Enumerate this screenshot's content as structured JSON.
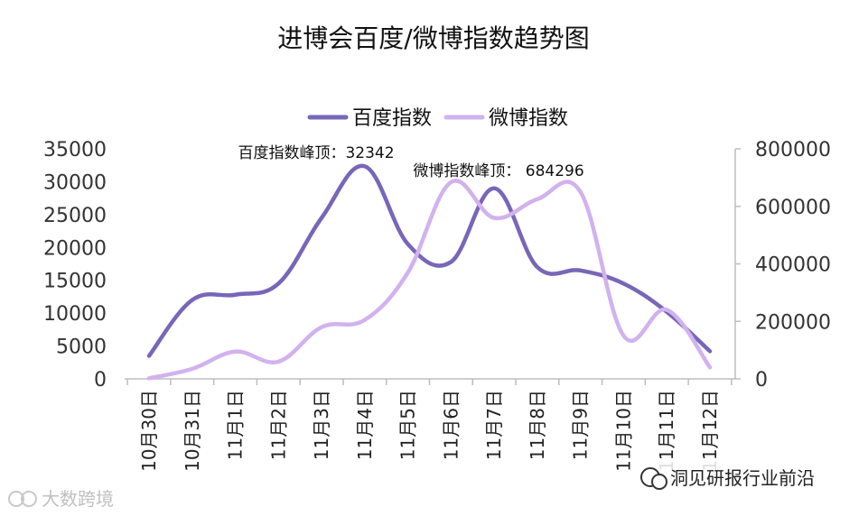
{
  "chart_data": {
    "type": "line",
    "title": "进博会百度/微博指数趋势图",
    "categories": [
      "10月30日",
      "10月31日",
      "11月1日",
      "11月2日",
      "11月3日",
      "11月4日",
      "11月5日",
      "11月6日",
      "11月7日",
      "11月8日",
      "11月9日",
      "11月10日",
      "11月11日",
      "11月12日"
    ],
    "series": [
      {
        "name": "百度指数",
        "axis": "left",
        "color": "#7866b8",
        "values": [
          3500,
          12000,
          12800,
          14500,
          24500,
          32342,
          20500,
          17800,
          29000,
          17000,
          16500,
          14500,
          10200,
          4200
        ]
      },
      {
        "name": "微博指数",
        "axis": "right",
        "color": "#d1b2ee",
        "values": [
          2000,
          35000,
          95000,
          60000,
          180000,
          205000,
          370000,
          684296,
          560000,
          625000,
          650000,
          150000,
          240000,
          40000
        ]
      }
    ],
    "y_left": {
      "min": 0,
      "max": 35000,
      "ticks": [
        "35000",
        "30000",
        "25000",
        "20000",
        "15000",
        "10000",
        "5000",
        "0"
      ]
    },
    "y_right": {
      "min": 0,
      "max": 800000,
      "ticks": [
        "800000",
        "600000",
        "400000",
        "200000",
        "0"
      ]
    },
    "legend_position": "top",
    "grid": false,
    "annotations": [
      {
        "text": "百度指数峰顶：32342",
        "series": 0,
        "index": 5
      },
      {
        "text": "微博指数峰顶： 684296",
        "series": 1,
        "index": 7
      }
    ]
  },
  "watermarks": {
    "left": "大数跨境",
    "right": "洞见研报行业前沿"
  }
}
